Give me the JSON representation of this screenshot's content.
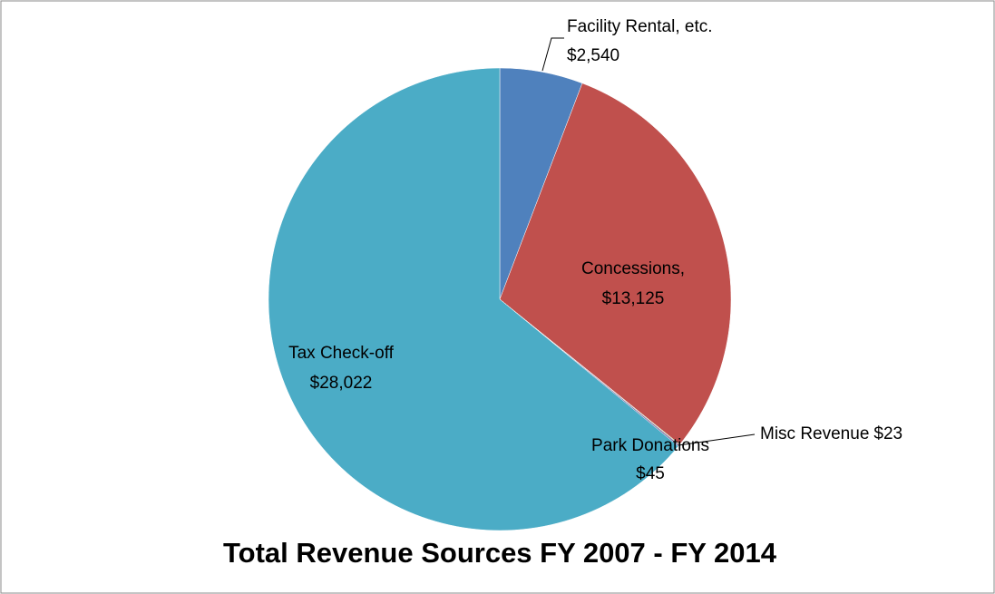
{
  "chart_data": {
    "type": "pie",
    "title": "Total Revenue Sources FY 2007 - FY 2014",
    "categories": [
      "Facility Rental, etc.",
      "Concessions,",
      "Misc Revenue",
      "Park Donations",
      "Tax Check-off"
    ],
    "values": [
      2540,
      13125,
      23,
      45,
      28022
    ],
    "value_labels": [
      "$2,540",
      "$13,125",
      "$23",
      "$45",
      "$28,022"
    ],
    "colors": [
      "#4f81bd",
      "#c0504d",
      "#9bbb59",
      "#8064a2",
      "#4bacc6"
    ]
  }
}
